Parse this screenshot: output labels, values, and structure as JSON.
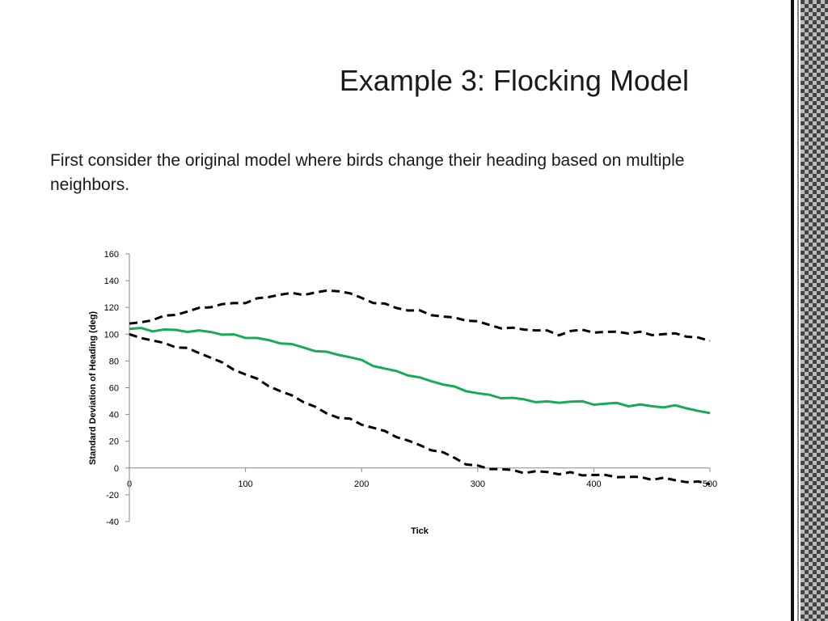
{
  "slide": {
    "title": "Example 3:  Flocking Model",
    "body": "First consider the original model where birds change their heading based on multiple neighbors."
  },
  "colors": {
    "mean_series": "#1aaa55",
    "bound_series": "#000000",
    "axis": "#888888"
  },
  "chart_data": {
    "type": "line",
    "title": "",
    "xlabel": "Tick",
    "ylabel": "Standard Deviation of Heading (deg)",
    "xlim": [
      0,
      500
    ],
    "ylim": [
      -40,
      160
    ],
    "x_ticks": [
      0,
      100,
      200,
      300,
      400,
      500
    ],
    "x_tick_labels": [
      "0",
      "100",
      "200",
      "300",
      "400",
      "500"
    ],
    "y_ticks": [
      -40,
      -20,
      0,
      20,
      40,
      60,
      80,
      100,
      120,
      140,
      160
    ],
    "y_tick_labels": [
      "-40",
      "-20",
      "0",
      "20",
      "40",
      "60",
      "80",
      "100",
      "120",
      "140",
      "160"
    ],
    "grid": false,
    "legend": "none",
    "series": [
      {
        "style": "solid",
        "color": "#1aaa55",
        "x": [
          0,
          10,
          20,
          30,
          40,
          50,
          60,
          70,
          80,
          90,
          100,
          110,
          120,
          130,
          140,
          150,
          160,
          170,
          180,
          190,
          200,
          210,
          220,
          230,
          240,
          250,
          260,
          270,
          280,
          290,
          300,
          310,
          320,
          330,
          340,
          350,
          360,
          370,
          380,
          390,
          400,
          410,
          420,
          430,
          440,
          450,
          460,
          470,
          480,
          490,
          500
        ],
        "y": [
          104,
          104,
          103,
          103,
          103,
          102.5,
          102,
          102,
          100,
          99,
          98,
          97,
          95,
          94,
          92,
          90,
          88,
          86,
          85,
          83,
          80,
          77,
          74,
          72,
          70,
          67,
          65,
          63,
          60,
          58,
          56,
          54,
          53,
          52,
          51,
          50,
          49,
          49,
          50,
          49,
          48,
          48,
          48,
          47,
          47,
          46,
          46,
          46,
          45,
          43,
          41
        ]
      },
      {
        "style": "dashed",
        "color": "#000000",
        "x": [
          0,
          10,
          20,
          30,
          40,
          50,
          60,
          70,
          80,
          90,
          100,
          110,
          120,
          130,
          140,
          150,
          160,
          170,
          180,
          190,
          200,
          210,
          220,
          230,
          240,
          250,
          260,
          270,
          280,
          290,
          300,
          310,
          320,
          330,
          340,
          350,
          360,
          370,
          380,
          390,
          400,
          410,
          420,
          430,
          440,
          450,
          460,
          470,
          480,
          490,
          500
        ],
        "y": [
          108,
          109,
          111,
          113,
          115,
          117,
          119,
          121,
          122,
          123,
          124,
          126,
          128,
          130,
          130,
          130,
          131,
          132,
          133,
          130,
          127,
          124,
          122,
          120,
          118,
          117,
          115,
          113,
          112,
          111,
          109,
          107,
          105,
          104,
          104,
          103,
          102,
          100,
          102,
          103,
          102,
          101,
          102,
          101,
          101,
          100,
          100,
          100,
          99,
          97,
          95
        ]
      },
      {
        "style": "dashed",
        "color": "#000000",
        "x": [
          0,
          10,
          20,
          30,
          40,
          50,
          60,
          70,
          80,
          90,
          100,
          110,
          120,
          130,
          140,
          150,
          160,
          170,
          180,
          190,
          200,
          210,
          220,
          230,
          240,
          250,
          260,
          270,
          280,
          290,
          300,
          310,
          320,
          330,
          340,
          350,
          360,
          370,
          380,
          390,
          400,
          410,
          420,
          430,
          440,
          450,
          460,
          470,
          480,
          490,
          500
        ],
        "y": [
          100,
          98,
          95,
          93,
          91,
          89,
          86,
          83,
          78,
          74,
          70,
          66,
          62,
          57,
          54,
          50,
          45,
          41,
          38,
          36,
          33,
          30,
          27,
          24,
          20,
          17,
          14,
          11,
          8,
          3,
          1,
          0,
          -1,
          -2,
          -3,
          -3,
          -3,
          -4,
          -4,
          -5,
          -5,
          -6,
          -6,
          -7,
          -7,
          -8,
          -8,
          -9,
          -10,
          -11,
          -12
        ]
      }
    ]
  }
}
